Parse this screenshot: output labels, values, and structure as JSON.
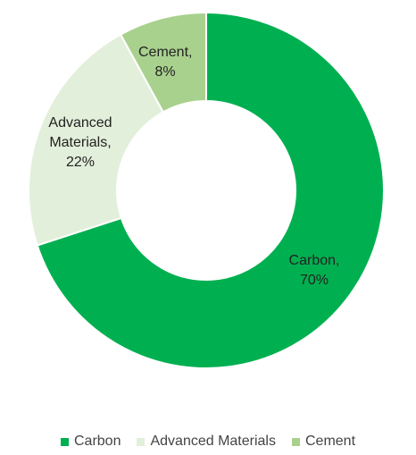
{
  "chart_data": {
    "type": "donut",
    "categories": [
      "Carbon",
      "Advanced Materials",
      "Cement"
    ],
    "values": [
      70,
      22,
      8
    ],
    "value_labels": [
      "Carbon, 70%",
      "Advanced Materials, 22%",
      "Cement, 8%"
    ],
    "colors": [
      "#00b050",
      "#e2efda",
      "#a9d18e"
    ],
    "legend": "bottom"
  }
}
